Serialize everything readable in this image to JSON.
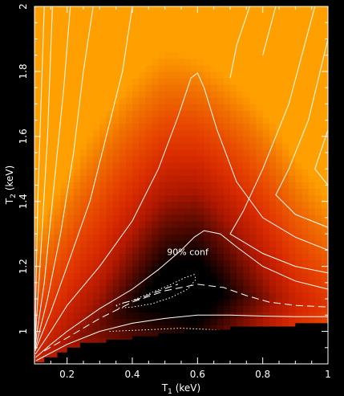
{
  "chart_data": {
    "type": "heatmap",
    "title": "",
    "xlabel": "T",
    "xlabel_sub": "1",
    "xlabel_unit": " (keV)",
    "ylabel": "T",
    "ylabel_sub": "2",
    "ylabel_unit": " (keV)",
    "xlim": [
      0.1,
      1.0
    ],
    "ylim": [
      0.9,
      2.0
    ],
    "xticks": [
      0.2,
      0.4,
      0.6,
      0.8,
      1
    ],
    "xtick_labels": [
      "0.2",
      "0.4",
      "0.6",
      "0.8",
      "1"
    ],
    "yticks": [
      1,
      1.2,
      1.4,
      1.6,
      1.8,
      2
    ],
    "ytick_labels": [
      "1",
      "1.2",
      "1.4",
      "1.6",
      "1.8",
      "2"
    ],
    "annotations": [
      {
        "text": "90% conf",
        "x": 0.57,
        "y": 1.235
      }
    ],
    "minimum": {
      "x": 0.5,
      "y": 1.13
    },
    "colors": {
      "background": "#000000",
      "colormap": [
        "#000000",
        "#5a0a00",
        "#b01800",
        "#d82a00",
        "#e84800",
        "#f07000",
        "#ffa000"
      ],
      "contour": "#ffffff",
      "excluded_region": "#000000"
    },
    "contours": [
      {
        "style": "dotted",
        "label": "90% conf",
        "points": [
          [
            0.35,
            1.08
          ],
          [
            0.4,
            1.095
          ],
          [
            0.46,
            1.12
          ],
          [
            0.52,
            1.145
          ],
          [
            0.56,
            1.165
          ],
          [
            0.59,
            1.175
          ],
          [
            0.595,
            1.16
          ],
          [
            0.57,
            1.13
          ],
          [
            0.52,
            1.105
          ],
          [
            0.46,
            1.085
          ],
          [
            0.4,
            1.075
          ],
          [
            0.36,
            1.072
          ],
          [
            0.35,
            1.08
          ]
        ]
      },
      {
        "style": "dashed",
        "points": [
          [
            0.37,
            1.087
          ],
          [
            0.42,
            1.1
          ],
          [
            0.47,
            1.12
          ],
          [
            0.51,
            1.135
          ],
          [
            0.54,
            1.145
          ]
        ]
      },
      {
        "style": "dashed",
        "points": [
          [
            0.13,
            0.94
          ],
          [
            0.2,
            0.98
          ],
          [
            0.3,
            1.04
          ],
          [
            0.4,
            1.09
          ],
          [
            0.5,
            1.125
          ],
          [
            0.6,
            1.145
          ],
          [
            0.68,
            1.135
          ],
          [
            0.75,
            1.11
          ],
          [
            0.82,
            1.09
          ],
          [
            0.9,
            1.08
          ],
          [
            1.0,
            1.075
          ]
        ]
      },
      {
        "style": "dotted",
        "points": [
          [
            0.33,
            1.0
          ],
          [
            0.45,
            1.005
          ],
          [
            0.55,
            1.01
          ],
          [
            0.65,
            1.005
          ],
          [
            0.75,
            1.0
          ],
          [
            0.85,
            1.005
          ],
          [
            1.0,
            1.01
          ]
        ]
      },
      {
        "style": "solid",
        "points": [
          [
            0.105,
            0.91
          ],
          [
            0.2,
            0.96
          ],
          [
            0.3,
            1.0
          ],
          [
            0.4,
            1.025
          ],
          [
            0.5,
            1.04
          ],
          [
            0.6,
            1.05
          ],
          [
            0.7,
            1.05
          ],
          [
            0.8,
            1.047
          ],
          [
            0.9,
            1.045
          ],
          [
            1.0,
            1.045
          ]
        ]
      },
      {
        "style": "solid",
        "points": [
          [
            0.104,
            0.92
          ],
          [
            0.15,
            0.96
          ],
          [
            0.2,
            1.0
          ],
          [
            0.3,
            1.07
          ],
          [
            0.4,
            1.13
          ],
          [
            0.48,
            1.19
          ],
          [
            0.55,
            1.25
          ],
          [
            0.59,
            1.29
          ],
          [
            0.62,
            1.31
          ],
          [
            0.67,
            1.3
          ],
          [
            0.72,
            1.26
          ],
          [
            0.8,
            1.2
          ],
          [
            0.9,
            1.155
          ],
          [
            1.0,
            1.13
          ]
        ]
      },
      {
        "style": "solid",
        "points": [
          [
            0.103,
            0.93
          ],
          [
            0.15,
            1.0
          ],
          [
            0.2,
            1.08
          ],
          [
            0.3,
            1.2
          ],
          [
            0.4,
            1.34
          ],
          [
            0.48,
            1.5
          ],
          [
            0.54,
            1.66
          ],
          [
            0.58,
            1.78
          ],
          [
            0.6,
            1.795
          ],
          [
            0.62,
            1.75
          ],
          [
            0.66,
            1.62
          ],
          [
            0.72,
            1.46
          ],
          [
            0.8,
            1.35
          ],
          [
            0.9,
            1.29
          ],
          [
            1.0,
            1.25
          ]
        ]
      },
      {
        "style": "solid",
        "points": [
          [
            0.102,
            0.94
          ],
          [
            0.15,
            1.06
          ],
          [
            0.2,
            1.2
          ],
          [
            0.27,
            1.4
          ],
          [
            0.32,
            1.6
          ],
          [
            0.37,
            1.8
          ],
          [
            0.4,
            2.0
          ]
        ]
      },
      {
        "style": "solid",
        "points": [
          [
            0.102,
            0.945
          ],
          [
            0.14,
            1.1
          ],
          [
            0.18,
            1.3
          ],
          [
            0.22,
            1.55
          ],
          [
            0.25,
            1.8
          ],
          [
            0.28,
            2.0
          ]
        ]
      },
      {
        "style": "solid",
        "points": [
          [
            0.101,
            0.95
          ],
          [
            0.13,
            1.15
          ],
          [
            0.16,
            1.45
          ],
          [
            0.19,
            1.75
          ],
          [
            0.21,
            2.0
          ]
        ]
      },
      {
        "style": "solid",
        "points": [
          [
            0.101,
            0.955
          ],
          [
            0.12,
            1.25
          ],
          [
            0.14,
            1.6
          ],
          [
            0.155,
            2.0
          ]
        ]
      },
      {
        "style": "solid",
        "points": [
          [
            0.101,
            0.96
          ],
          [
            0.11,
            1.4
          ],
          [
            0.12,
            1.7
          ],
          [
            0.13,
            2.0
          ]
        ]
      },
      {
        "style": "solid",
        "points": [
          [
            0.96,
            2.0
          ],
          [
            0.88,
            1.7
          ],
          [
            0.8,
            1.5
          ],
          [
            0.74,
            1.37
          ],
          [
            0.7,
            1.3
          ],
          [
            0.8,
            1.24
          ],
          [
            0.9,
            1.2
          ],
          [
            1.0,
            1.18
          ]
        ]
      },
      {
        "style": "solid",
        "points": [
          [
            1.0,
            1.9
          ],
          [
            0.94,
            1.65
          ],
          [
            0.88,
            1.5
          ],
          [
            0.84,
            1.42
          ],
          [
            0.9,
            1.36
          ],
          [
            1.0,
            1.32
          ]
        ]
      },
      {
        "style": "solid",
        "points": [
          [
            1.0,
            1.62
          ],
          [
            0.96,
            1.5
          ],
          [
            1.0,
            1.45
          ]
        ]
      },
      {
        "style": "solid",
        "points": [
          [
            0.76,
            2.0
          ],
          [
            0.72,
            1.88
          ],
          [
            0.7,
            1.78
          ]
        ]
      },
      {
        "style": "solid",
        "points": [
          [
            0.84,
            2.0
          ],
          [
            0.8,
            1.85
          ]
        ]
      }
    ],
    "excluded_region": [
      [
        0.1,
        0.9
      ],
      [
        0.1,
        0.905
      ],
      [
        0.13,
        0.905
      ],
      [
        0.13,
        0.92
      ],
      [
        0.17,
        0.92
      ],
      [
        0.17,
        0.935
      ],
      [
        0.2,
        0.935
      ],
      [
        0.2,
        0.95
      ],
      [
        0.24,
        0.95
      ],
      [
        0.24,
        0.965
      ],
      [
        0.32,
        0.965
      ],
      [
        0.32,
        0.975
      ],
      [
        0.4,
        0.975
      ],
      [
        0.4,
        0.985
      ],
      [
        0.48,
        0.985
      ],
      [
        0.48,
        0.995
      ],
      [
        0.56,
        0.995
      ],
      [
        0.56,
        1.005
      ],
      [
        0.7,
        1.005
      ],
      [
        0.7,
        1.015
      ],
      [
        0.9,
        1.015
      ],
      [
        0.9,
        1.025
      ],
      [
        1.0,
        1.025
      ],
      [
        1.0,
        0.9
      ]
    ]
  }
}
